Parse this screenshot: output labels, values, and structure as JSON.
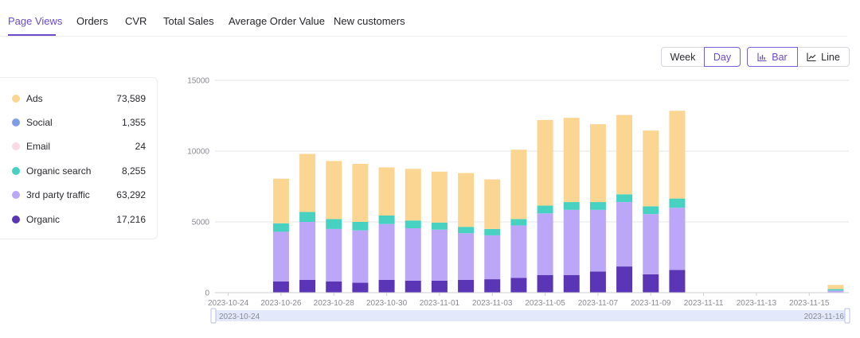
{
  "tabs": [
    {
      "label": "Page Views",
      "active": true
    },
    {
      "label": "Orders",
      "active": false
    },
    {
      "label": "CVR",
      "active": false
    },
    {
      "label": "Total Sales",
      "active": false
    },
    {
      "label": "Average Order Value",
      "active": false
    },
    {
      "label": "New customers",
      "active": false
    }
  ],
  "controls": {
    "period": {
      "week_label": "Week",
      "day_label": "Day",
      "selected": "Day"
    },
    "chart_type": {
      "bar_label": "Bar",
      "line_label": "Line",
      "selected": "Bar"
    }
  },
  "legend": [
    {
      "label": "Ads",
      "value": "73,589",
      "color": "#fbd592"
    },
    {
      "label": "Social",
      "value": "1,355",
      "color": "#7f9ce6"
    },
    {
      "label": "Email",
      "value": "24",
      "color": "#f9d9e2"
    },
    {
      "label": "Organic search",
      "value": "8,255",
      "color": "#47d1c0"
    },
    {
      "label": "3rd party traffic",
      "value": "63,292",
      "color": "#bba6f8"
    },
    {
      "label": "Organic",
      "value": "17,216",
      "color": "#5a35b5"
    }
  ],
  "chart_data": {
    "type": "bar",
    "stacked": true,
    "title": "",
    "xlabel": "",
    "ylabel": "",
    "ylim": [
      0,
      15000
    ],
    "yticks": [
      0,
      5000,
      10000,
      15000
    ],
    "categories": [
      "2023-10-24",
      "2023-10-25",
      "2023-10-26",
      "2023-10-27",
      "2023-10-28",
      "2023-10-29",
      "2023-10-30",
      "2023-10-31",
      "2023-11-01",
      "2023-11-02",
      "2023-11-03",
      "2023-11-04",
      "2023-11-05",
      "2023-11-06",
      "2023-11-07",
      "2023-11-08",
      "2023-11-09",
      "2023-11-10",
      "2023-11-11",
      "2023-11-12",
      "2023-11-13",
      "2023-11-14",
      "2023-11-15",
      "2023-11-16"
    ],
    "xtick_labels": [
      "2023-10-24",
      "2023-10-26",
      "2023-10-28",
      "2023-10-30",
      "2023-11-01",
      "2023-11-03",
      "2023-11-05",
      "2023-11-07",
      "2023-11-09",
      "2023-11-11",
      "2023-11-13",
      "2023-11-15"
    ],
    "series": [
      {
        "name": "Organic",
        "color": "#5a35b5",
        "values": [
          0,
          0,
          800,
          900,
          800,
          700,
          900,
          850,
          850,
          900,
          950,
          1050,
          1250,
          1250,
          1500,
          1850,
          1300,
          1600,
          0,
          0,
          0,
          0,
          0,
          0
        ]
      },
      {
        "name": "3rd party traffic",
        "color": "#bba6f8",
        "values": [
          0,
          0,
          3500,
          4100,
          3700,
          3700,
          3950,
          3700,
          3600,
          3300,
          3100,
          3700,
          4350,
          4600,
          4350,
          4550,
          4250,
          4400,
          0,
          0,
          0,
          0,
          0,
          150
        ]
      },
      {
        "name": "Organic search",
        "color": "#47d1c0",
        "values": [
          0,
          0,
          600,
          700,
          700,
          600,
          600,
          550,
          500,
          450,
          450,
          450,
          550,
          550,
          550,
          550,
          550,
          650,
          0,
          0,
          0,
          0,
          0,
          100
        ]
      },
      {
        "name": "Email",
        "color": "#f9d9e2",
        "values": [
          0,
          0,
          0,
          0,
          0,
          0,
          0,
          0,
          0,
          0,
          0,
          0,
          0,
          0,
          0,
          0,
          0,
          0,
          0,
          0,
          0,
          0,
          0,
          0
        ]
      },
      {
        "name": "Social",
        "color": "#7f9ce6",
        "values": [
          0,
          0,
          0,
          0,
          0,
          0,
          0,
          0,
          0,
          0,
          0,
          0,
          0,
          0,
          0,
          0,
          0,
          0,
          0,
          0,
          0,
          0,
          0,
          0
        ]
      },
      {
        "name": "Ads",
        "color": "#fbd592",
        "values": [
          0,
          0,
          3150,
          4100,
          4100,
          4100,
          3400,
          3650,
          3600,
          3800,
          3500,
          4900,
          6050,
          5950,
          5500,
          5600,
          5350,
          6200,
          0,
          0,
          0,
          0,
          0,
          300
        ]
      }
    ]
  },
  "slider": {
    "start_label": "2023-10-24",
    "end_label": "2023-11-16"
  },
  "colors": {
    "accent": "#6a4bc9",
    "grid": "#e6e6ea",
    "slider_fill": "#e3e8fb"
  }
}
